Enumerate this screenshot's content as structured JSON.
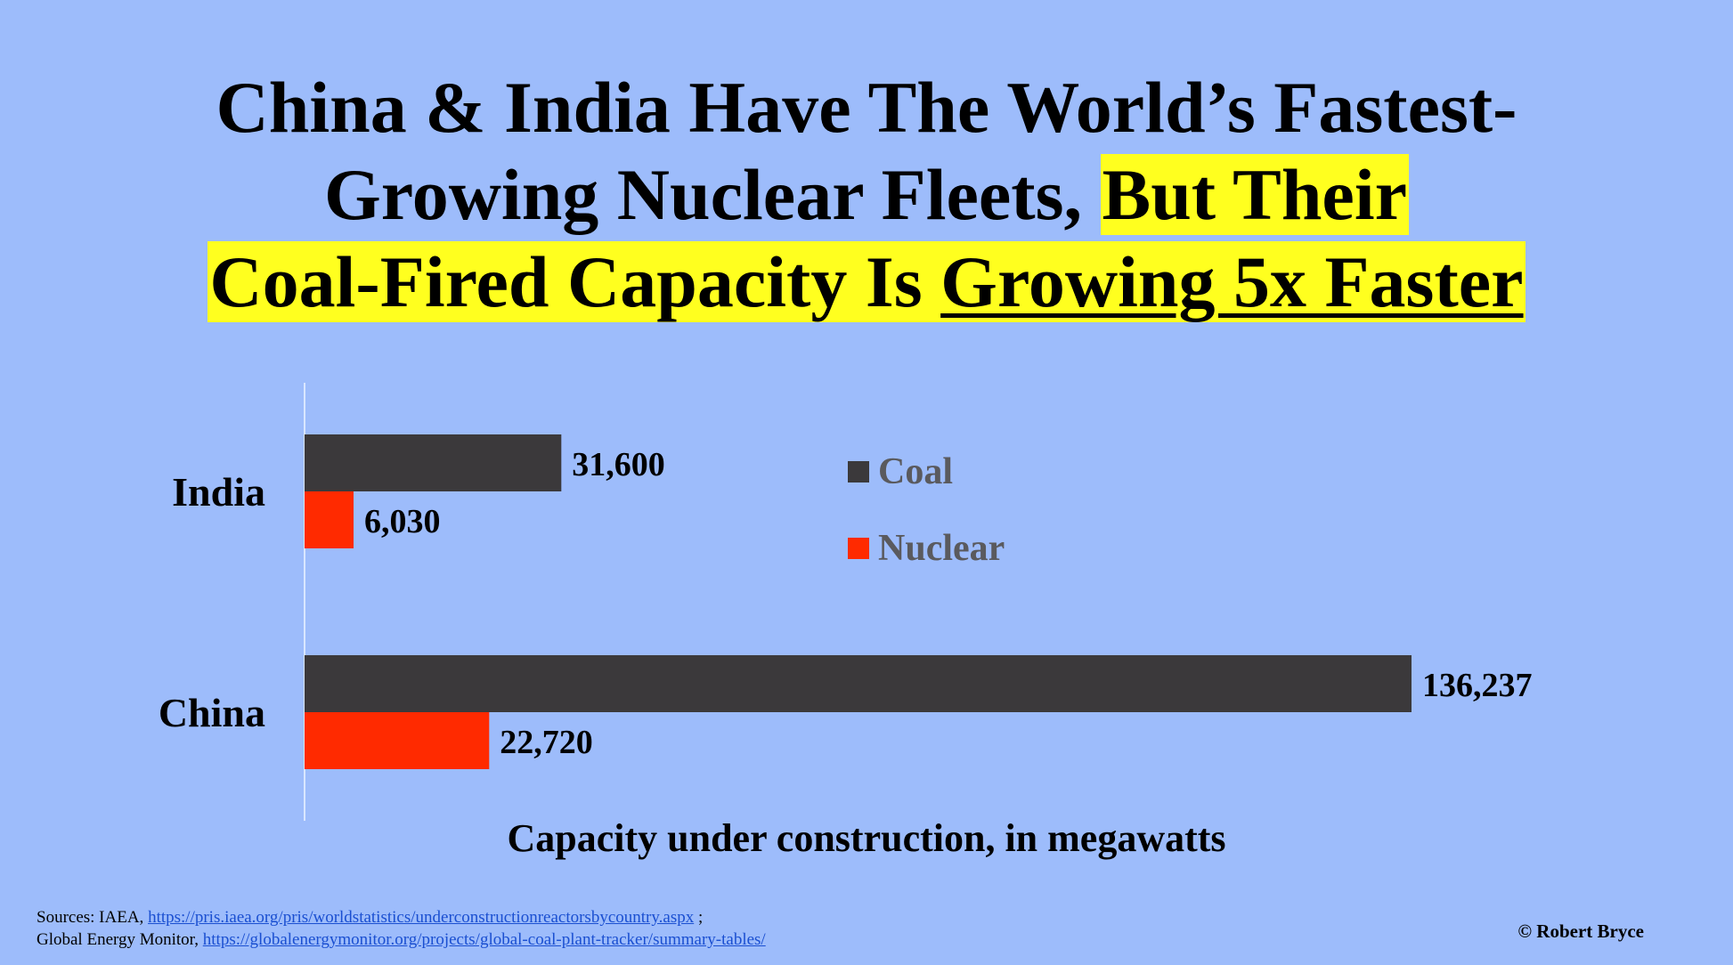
{
  "title": {
    "line1": "China & India Have The World’s Fastest-",
    "line2_plain": "Growing Nuclear Fleets, ",
    "line2_highlight": "But Their",
    "line3_plain": "Coal-Fired Capacity Is ",
    "line3_underline": "Growing 5x Faster"
  },
  "chart_data": {
    "type": "bar",
    "orientation": "horizontal",
    "categories": [
      "India",
      "China"
    ],
    "series": [
      {
        "name": "Coal",
        "color": "#3b393b",
        "values": [
          31600,
          136237
        ],
        "labels": [
          "31,600",
          "136,237"
        ]
      },
      {
        "name": "Nuclear",
        "color": "#ff2a00",
        "values": [
          6030,
          22720
        ],
        "labels": [
          "6,030",
          "22,720"
        ]
      }
    ],
    "xlabel": "Capacity under construction, in megawatts",
    "xlim": [
      0,
      140000
    ],
    "grid": false,
    "legend_position": "upper-center"
  },
  "sources": {
    "line1_prefix": "Sources: IAEA, ",
    "line1_url": "https://pris.iaea.org/pris/worldstatistics/underconstructionreactorsbycountry.aspx",
    "line1_suffix": " ;",
    "line2_prefix": "Global Energy Monitor, ",
    "line2_url": "https://globalenergymonitor.org/projects/global-coal-plant-tracker/summary-tables/"
  },
  "copyright": "© Robert Bryce"
}
